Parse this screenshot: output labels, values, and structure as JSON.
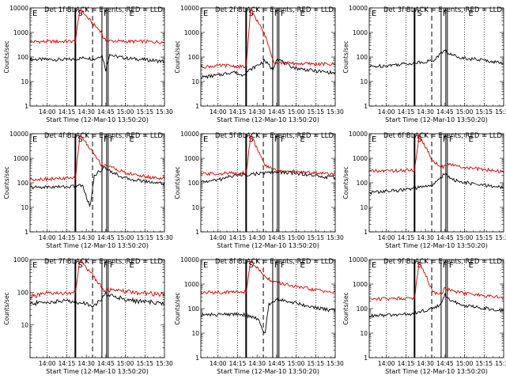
{
  "chart_data": [
    {
      "type": "line",
      "title": "Det 1f BLACK = Events, RED = LLD",
      "xlabel": "Start Time (12-Mar-10 13:50:20)",
      "ylabel": "Counts/sec",
      "ylog": true,
      "ylim": [
        1,
        10000
      ],
      "x_tick_labels": [
        "14:00",
        "14:15",
        "14:30",
        "14:45",
        "15:00",
        "15:15",
        "15:30"
      ],
      "y_tick_labels": [
        "1",
        "10",
        "100",
        "1000",
        "10000"
      ],
      "annotations": [
        "E",
        "S",
        "F",
        "E"
      ],
      "series": [
        {
          "color": "#000000",
          "points": [
            [
              13.8,
              80
            ],
            [
              14.3,
              78
            ],
            [
              14.5,
              95
            ],
            [
              14.6,
              80
            ],
            [
              14.7,
              120
            ],
            [
              14.75,
              30
            ],
            [
              14.8,
              140
            ],
            [
              14.85,
              110
            ],
            [
              15.0,
              90
            ],
            [
              15.3,
              75
            ],
            [
              15.5,
              65
            ]
          ]
        },
        {
          "color": "#d40000",
          "points": [
            [
              13.8,
              420
            ],
            [
              14.3,
              430
            ],
            [
              14.36,
              440
            ],
            [
              14.42,
              9000
            ],
            [
              14.6,
              2000
            ],
            [
              14.7,
              1000
            ],
            [
              14.72,
              520
            ],
            [
              14.8,
              450
            ],
            [
              15.0,
              430
            ],
            [
              15.3,
              420
            ],
            [
              15.5,
              400
            ]
          ]
        }
      ]
    },
    {
      "type": "line",
      "title": "Det 2f BLACK = Events, RED = LLD",
      "xlabel": "Start Time (12-Mar-10 13:50:20)",
      "ylabel": "Counts/sec",
      "ylog": true,
      "ylim": [
        1,
        10000
      ],
      "x_tick_labels": [
        "14:00",
        "14:15",
        "14:30",
        "14:45",
        "15:00",
        "15:15",
        "15:30"
      ],
      "y_tick_labels": [
        "1",
        "10",
        "100",
        "1000",
        "10000"
      ],
      "annotations": [
        "E",
        "S",
        "F",
        "F",
        "E"
      ],
      "series": [
        {
          "color": "#000000",
          "points": [
            [
              13.8,
              15
            ],
            [
              14.0,
              18
            ],
            [
              14.2,
              25
            ],
            [
              14.3,
              18
            ],
            [
              14.6,
              70
            ],
            [
              14.7,
              30
            ],
            [
              14.75,
              90
            ],
            [
              14.9,
              45
            ],
            [
              15.0,
              35
            ],
            [
              15.2,
              28
            ],
            [
              15.5,
              22
            ]
          ]
        },
        {
          "color": "#d40000",
          "points": [
            [
              13.8,
              40
            ],
            [
              14.1,
              45
            ],
            [
              14.3,
              40
            ],
            [
              14.36,
              40
            ],
            [
              14.42,
              9000
            ],
            [
              14.6,
              800
            ],
            [
              14.72,
              60
            ],
            [
              14.9,
              55
            ],
            [
              15.2,
              52
            ],
            [
              15.5,
              50
            ]
          ]
        }
      ]
    },
    {
      "type": "line",
      "title": "Det 3f BLACK = Events, RED = LLD",
      "xlabel": "Start Time (12-Mar-10 13:50:20)",
      "ylabel": "Counts/sec",
      "ylog": true,
      "ylim": [
        1,
        10000
      ],
      "x_tick_labels": [
        "14:00",
        "14:15",
        "14:30",
        "14:45",
        "15:00",
        "15:15",
        "15:30"
      ],
      "y_tick_labels": [
        "1",
        "10",
        "100",
        "1000",
        "10000"
      ],
      "annotations": [
        "E",
        "S",
        "F",
        "E"
      ],
      "series": [
        {
          "color": "#000000",
          "points": [
            [
              13.8,
              40
            ],
            [
              14.0,
              45
            ],
            [
              14.3,
              55
            ],
            [
              14.6,
              70
            ],
            [
              14.75,
              200
            ],
            [
              14.8,
              130
            ],
            [
              15.0,
              90
            ],
            [
              15.3,
              70
            ],
            [
              15.5,
              55
            ]
          ]
        }
      ]
    },
    {
      "type": "line",
      "title": "Det 4f BLACK = Events, RED = LLD",
      "xlabel": "Start Time (12-Mar-10 13:50:20)",
      "ylabel": "Counts/sec",
      "ylog": true,
      "ylim": [
        1,
        10000
      ],
      "x_tick_labels": [
        "14:00",
        "14:15",
        "14:30",
        "14:45",
        "15:00",
        "15:15",
        "15:30"
      ],
      "y_tick_labels": [
        "1",
        "10",
        "100",
        "1000",
        "10000"
      ],
      "annotations": [
        "E",
        "S",
        "F",
        "F",
        "E"
      ],
      "series": [
        {
          "color": "#000000",
          "points": [
            [
              13.8,
              65
            ],
            [
              14.3,
              70
            ],
            [
              14.45,
              80
            ],
            [
              14.55,
              10
            ],
            [
              14.6,
              200
            ],
            [
              14.7,
              350
            ],
            [
              14.75,
              420
            ],
            [
              14.85,
              250
            ],
            [
              15.0,
              150
            ],
            [
              15.3,
              110
            ],
            [
              15.5,
              95
            ]
          ]
        },
        {
          "color": "#d40000",
          "points": [
            [
              13.8,
              140
            ],
            [
              14.3,
              150
            ],
            [
              14.36,
              160
            ],
            [
              14.42,
              9000
            ],
            [
              14.6,
              1500
            ],
            [
              14.7,
              500
            ],
            [
              14.75,
              550
            ],
            [
              14.85,
              400
            ],
            [
              15.0,
              250
            ],
            [
              15.3,
              170
            ],
            [
              15.5,
              150
            ]
          ]
        }
      ]
    },
    {
      "type": "line",
      "title": "Det 5f BLACK = Events, RED = LLD",
      "xlabel": "Start Time (12-Mar-10 13:50:20)",
      "ylabel": "Counts/sec",
      "ylog": true,
      "ylim": [
        1,
        10000
      ],
      "x_tick_labels": [
        "14:00",
        "14:15",
        "14:30",
        "14:45",
        "15:00",
        "15:15",
        "15:30"
      ],
      "y_tick_labels": [
        "1",
        "10",
        "100",
        "1000",
        "10000"
      ],
      "annotations": [
        "E",
        "S",
        "F",
        "F",
        "E"
      ],
      "series": [
        {
          "color": "#000000",
          "points": [
            [
              13.8,
              110
            ],
            [
              14.0,
              130
            ],
            [
              14.2,
              200
            ],
            [
              14.4,
              220
            ],
            [
              14.6,
              250
            ],
            [
              14.7,
              270
            ],
            [
              14.9,
              260
            ],
            [
              15.1,
              230
            ],
            [
              15.3,
              180
            ],
            [
              15.5,
              160
            ]
          ]
        },
        {
          "color": "#d40000",
          "points": [
            [
              13.8,
              230
            ],
            [
              14.3,
              250
            ],
            [
              14.36,
              250
            ],
            [
              14.42,
              9000
            ],
            [
              14.6,
              500
            ],
            [
              14.75,
              320
            ],
            [
              15.0,
              280
            ],
            [
              15.3,
              250
            ],
            [
              15.5,
              230
            ]
          ]
        }
      ]
    },
    {
      "type": "line",
      "title": "Det 6f BLACK = Events, RED = LLD",
      "xlabel": "Start Time (12-Mar-10 13:50:20)",
      "ylabel": "Counts/sec",
      "ylog": true,
      "ylim": [
        1,
        10000
      ],
      "x_tick_labels": [
        "14:00",
        "14:15",
        "14:30",
        "14:45",
        "15:00",
        "15:15",
        "15:30"
      ],
      "y_tick_labels": [
        "1",
        "10",
        "100",
        "1000",
        "10000"
      ],
      "annotations": [
        "E",
        "S",
        "F",
        "F",
        "E"
      ],
      "series": [
        {
          "color": "#000000",
          "points": [
            [
              13.8,
              40
            ],
            [
              14.0,
              45
            ],
            [
              14.3,
              55
            ],
            [
              14.6,
              80
            ],
            [
              14.75,
              250
            ],
            [
              14.85,
              130
            ],
            [
              15.0,
              100
            ],
            [
              15.3,
              75
            ],
            [
              15.5,
              65
            ]
          ]
        },
        {
          "color": "#d40000",
          "points": [
            [
              13.8,
              300
            ],
            [
              14.3,
              320
            ],
            [
              14.36,
              320
            ],
            [
              14.42,
              9000
            ],
            [
              14.6,
              700
            ],
            [
              14.72,
              450
            ],
            [
              14.8,
              550
            ],
            [
              15.0,
              420
            ],
            [
              15.3,
              330
            ],
            [
              15.5,
              280
            ]
          ]
        }
      ]
    },
    {
      "type": "line",
      "title": "Det 7f BLACK = Events, RED = LLD",
      "xlabel": "Start Time (12-Mar-10 13:50:20)",
      "ylabel": "Counts/sec",
      "ylog": true,
      "ylim": [
        1,
        1000
      ],
      "x_tick_labels": [
        "14:00",
        "14:15",
        "14:30",
        "14:45",
        "15:00",
        "15:15",
        "15:30"
      ],
      "y_tick_labels": [
        "10",
        "100",
        "1000"
      ],
      "annotations": [
        "E",
        "S",
        "F",
        "F",
        "E"
      ],
      "series": [
        {
          "color": "#000000",
          "points": [
            [
              13.8,
              45
            ],
            [
              14.0,
              50
            ],
            [
              14.3,
              55
            ],
            [
              14.6,
              40
            ],
            [
              14.7,
              60
            ],
            [
              14.75,
              90
            ],
            [
              14.9,
              70
            ],
            [
              15.1,
              55
            ],
            [
              15.3,
              50
            ],
            [
              15.5,
              45
            ]
          ]
        },
        {
          "color": "#d40000",
          "points": [
            [
              13.8,
              75
            ],
            [
              14.0,
              90
            ],
            [
              14.3,
              95
            ],
            [
              14.36,
              95
            ],
            [
              14.42,
              950
            ],
            [
              14.6,
              300
            ],
            [
              14.72,
              120
            ],
            [
              14.9,
              110
            ],
            [
              15.2,
              95
            ],
            [
              15.5,
              85
            ]
          ]
        }
      ]
    },
    {
      "type": "line",
      "title": "Det 8f BLACK = Events, RED = LLD",
      "xlabel": "Start Time (12-Mar-10 13:50:20)",
      "ylabel": "Counts/sec",
      "ylog": true,
      "ylim": [
        1,
        10000
      ],
      "x_tick_labels": [
        "14:00",
        "14:15",
        "14:30",
        "14:45",
        "15:00",
        "15:15",
        "15:30"
      ],
      "y_tick_labels": [
        "1",
        "10",
        "100",
        "1000",
        "10000"
      ],
      "annotations": [
        "E",
        "S",
        "F",
        "F",
        "E"
      ],
      "series": [
        {
          "color": "#000000",
          "points": [
            [
              13.8,
              55
            ],
            [
              14.3,
              60
            ],
            [
              14.5,
              40
            ],
            [
              14.6,
              10
            ],
            [
              14.65,
              150
            ],
            [
              14.75,
              250
            ],
            [
              14.9,
              200
            ],
            [
              15.1,
              140
            ],
            [
              15.3,
              100
            ],
            [
              15.5,
              80
            ]
          ]
        },
        {
          "color": "#d40000",
          "points": [
            [
              13.8,
              450
            ],
            [
              14.3,
              480
            ],
            [
              14.36,
              480
            ],
            [
              14.42,
              9000
            ],
            [
              14.6,
              2000
            ],
            [
              14.72,
              1200
            ],
            [
              14.9,
              900
            ],
            [
              15.2,
              600
            ],
            [
              15.5,
              450
            ]
          ]
        }
      ]
    },
    {
      "type": "line",
      "title": "Det 9f BLACK = Events, RED = LLD",
      "xlabel": "Start Time (12-Mar-10 13:50:20)",
      "ylabel": "Counts/sec",
      "ylog": true,
      "ylim": [
        1,
        10000
      ],
      "x_tick_labels": [
        "14:00",
        "14:15",
        "14:30",
        "14:45",
        "15:00",
        "15:15",
        "15:30"
      ],
      "y_tick_labels": [
        "1",
        "10",
        "100",
        "1000",
        "10000"
      ],
      "annotations": [
        "E",
        "S",
        "F",
        "F",
        "E"
      ],
      "series": [
        {
          "color": "#000000",
          "points": [
            [
              13.8,
              50
            ],
            [
              14.3,
              60
            ],
            [
              14.55,
              90
            ],
            [
              14.6,
              110
            ],
            [
              14.7,
              150
            ],
            [
              14.75,
              350
            ],
            [
              14.85,
              200
            ],
            [
              15.0,
              130
            ],
            [
              15.3,
              100
            ],
            [
              15.5,
              80
            ]
          ]
        },
        {
          "color": "#d40000",
          "points": [
            [
              13.8,
              250
            ],
            [
              14.3,
              270
            ],
            [
              14.36,
              280
            ],
            [
              14.42,
              9000
            ],
            [
              14.6,
              450
            ],
            [
              14.7,
              400
            ],
            [
              14.75,
              700
            ],
            [
              14.85,
              500
            ],
            [
              15.1,
              380
            ],
            [
              15.3,
              320
            ],
            [
              15.5,
              280
            ]
          ]
        }
      ]
    }
  ]
}
